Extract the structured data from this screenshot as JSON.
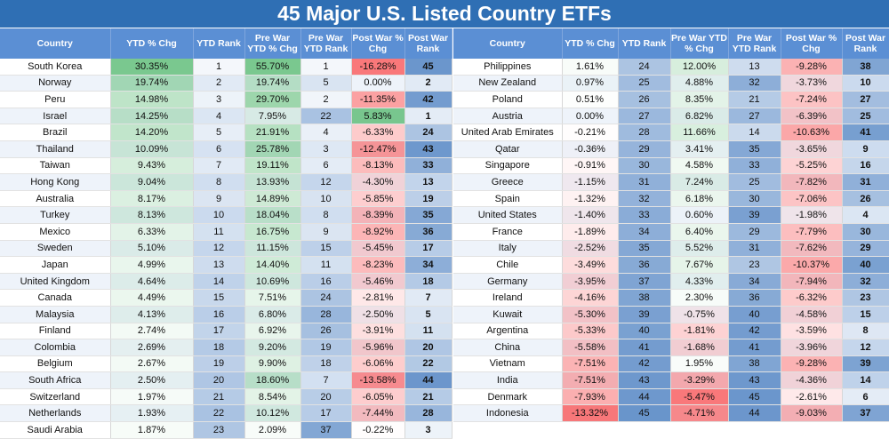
{
  "title": "45 Major U.S. Listed Country ETFs",
  "headers": [
    "Country",
    "YTD % Chg",
    "YTD Rank",
    "Pre War YTD % Chg",
    "Pre War YTD Rank",
    "Post War % Chg",
    "Post War Rank"
  ],
  "colors": {
    "title_bg": "#2f6fb4",
    "header_bg": "#5b8fd4",
    "positive": "#63be7b",
    "negative": "#f8696b",
    "rank_blue": "#5a8ac6"
  },
  "chart_data": {
    "type": "table",
    "title": "45 Major U.S. Listed Country ETFs",
    "columns": [
      "Country",
      "YTD % Chg",
      "YTD Rank",
      "Pre War YTD % Chg",
      "Pre War YTD Rank",
      "Post War % Chg",
      "Post War Rank"
    ],
    "left": [
      [
        "South Korea",
        "30.35%",
        "1",
        "55.70%",
        "1",
        "-16.28%",
        "45"
      ],
      [
        "Norway",
        "19.74%",
        "2",
        "19.74%",
        "5",
        "0.00%",
        "2"
      ],
      [
        "Peru",
        "14.98%",
        "3",
        "29.70%",
        "2",
        "-11.35%",
        "42"
      ],
      [
        "Israel",
        "14.25%",
        "4",
        "7.95%",
        "22",
        "5.83%",
        "1"
      ],
      [
        "Brazil",
        "14.20%",
        "5",
        "21.91%",
        "4",
        "-6.33%",
        "24"
      ],
      [
        "Thailand",
        "10.09%",
        "6",
        "25.78%",
        "3",
        "-12.47%",
        "43"
      ],
      [
        "Taiwan",
        "9.43%",
        "7",
        "19.11%",
        "6",
        "-8.13%",
        "33"
      ],
      [
        "Hong Kong",
        "9.04%",
        "8",
        "13.93%",
        "12",
        "-4.30%",
        "13"
      ],
      [
        "Australia",
        "8.17%",
        "9",
        "14.89%",
        "10",
        "-5.85%",
        "19"
      ],
      [
        "Turkey",
        "8.13%",
        "10",
        "18.04%",
        "8",
        "-8.39%",
        "35"
      ],
      [
        "Mexico",
        "6.33%",
        "11",
        "16.75%",
        "9",
        "-8.92%",
        "36"
      ],
      [
        "Sweden",
        "5.10%",
        "12",
        "11.15%",
        "15",
        "-5.45%",
        "17"
      ],
      [
        "Japan",
        "4.99%",
        "13",
        "14.40%",
        "11",
        "-8.23%",
        "34"
      ],
      [
        "United Kingdom",
        "4.64%",
        "14",
        "10.69%",
        "16",
        "-5.46%",
        "18"
      ],
      [
        "Canada",
        "4.49%",
        "15",
        "7.51%",
        "24",
        "-2.81%",
        "7"
      ],
      [
        "Malaysia",
        "4.13%",
        "16",
        "6.80%",
        "28",
        "-2.50%",
        "5"
      ],
      [
        "Finland",
        "2.74%",
        "17",
        "6.92%",
        "26",
        "-3.91%",
        "11"
      ],
      [
        "Colombia",
        "2.69%",
        "18",
        "9.20%",
        "19",
        "-5.96%",
        "20"
      ],
      [
        "Belgium",
        "2.67%",
        "19",
        "9.90%",
        "18",
        "-6.06%",
        "22"
      ],
      [
        "South Africa",
        "2.50%",
        "20",
        "18.60%",
        "7",
        "-13.58%",
        "44"
      ],
      [
        "Switzerland",
        "1.97%",
        "21",
        "8.54%",
        "20",
        "-6.05%",
        "21"
      ],
      [
        "Netherlands",
        "1.93%",
        "22",
        "10.12%",
        "17",
        "-7.44%",
        "28"
      ],
      [
        "Saudi Arabia",
        "1.87%",
        "23",
        "2.09%",
        "37",
        "-0.22%",
        "3"
      ]
    ],
    "right": [
      [
        "Philippines",
        "1.61%",
        "24",
        "12.00%",
        "13",
        "-9.28%",
        "38"
      ],
      [
        "New Zealand",
        "0.97%",
        "25",
        "4.88%",
        "32",
        "-3.73%",
        "10"
      ],
      [
        "Poland",
        "0.51%",
        "26",
        "8.35%",
        "21",
        "-7.24%",
        "27"
      ],
      [
        "Austria",
        "0.00%",
        "27",
        "6.82%",
        "27",
        "-6.39%",
        "25"
      ],
      [
        "United Arab Emirates",
        "-0.21%",
        "28",
        "11.66%",
        "14",
        "-10.63%",
        "41"
      ],
      [
        "Qatar",
        "-0.36%",
        "29",
        "3.41%",
        "35",
        "-3.65%",
        "9"
      ],
      [
        "Singapore",
        "-0.91%",
        "30",
        "4.58%",
        "33",
        "-5.25%",
        "16"
      ],
      [
        "Greece",
        "-1.15%",
        "31",
        "7.24%",
        "25",
        "-7.82%",
        "31"
      ],
      [
        "Spain",
        "-1.32%",
        "32",
        "6.18%",
        "30",
        "-7.06%",
        "26"
      ],
      [
        "United States",
        "-1.40%",
        "33",
        "0.60%",
        "39",
        "-1.98%",
        "4"
      ],
      [
        "France",
        "-1.89%",
        "34",
        "6.40%",
        "29",
        "-7.79%",
        "30"
      ],
      [
        "Italy",
        "-2.52%",
        "35",
        "5.52%",
        "31",
        "-7.62%",
        "29"
      ],
      [
        "Chile",
        "-3.49%",
        "36",
        "7.67%",
        "23",
        "-10.37%",
        "40"
      ],
      [
        "Germany",
        "-3.95%",
        "37",
        "4.33%",
        "34",
        "-7.94%",
        "32"
      ],
      [
        "Ireland",
        "-4.16%",
        "38",
        "2.30%",
        "36",
        "-6.32%",
        "23"
      ],
      [
        "Kuwait",
        "-5.30%",
        "39",
        "-0.75%",
        "40",
        "-4.58%",
        "15"
      ],
      [
        "Argentina",
        "-5.33%",
        "40",
        "-1.81%",
        "42",
        "-3.59%",
        "8"
      ],
      [
        "China",
        "-5.58%",
        "41",
        "-1.68%",
        "41",
        "-3.96%",
        "12"
      ],
      [
        "Vietnam",
        "-7.51%",
        "42",
        "1.95%",
        "38",
        "-9.28%",
        "39"
      ],
      [
        "India",
        "-7.51%",
        "43",
        "-3.29%",
        "43",
        "-4.36%",
        "14"
      ],
      [
        "Denmark",
        "-7.93%",
        "44",
        "-5.47%",
        "45",
        "-2.61%",
        "6"
      ],
      [
        "Indonesia",
        "-13.32%",
        "45",
        "-4.71%",
        "44",
        "-9.03%",
        "37"
      ]
    ]
  }
}
